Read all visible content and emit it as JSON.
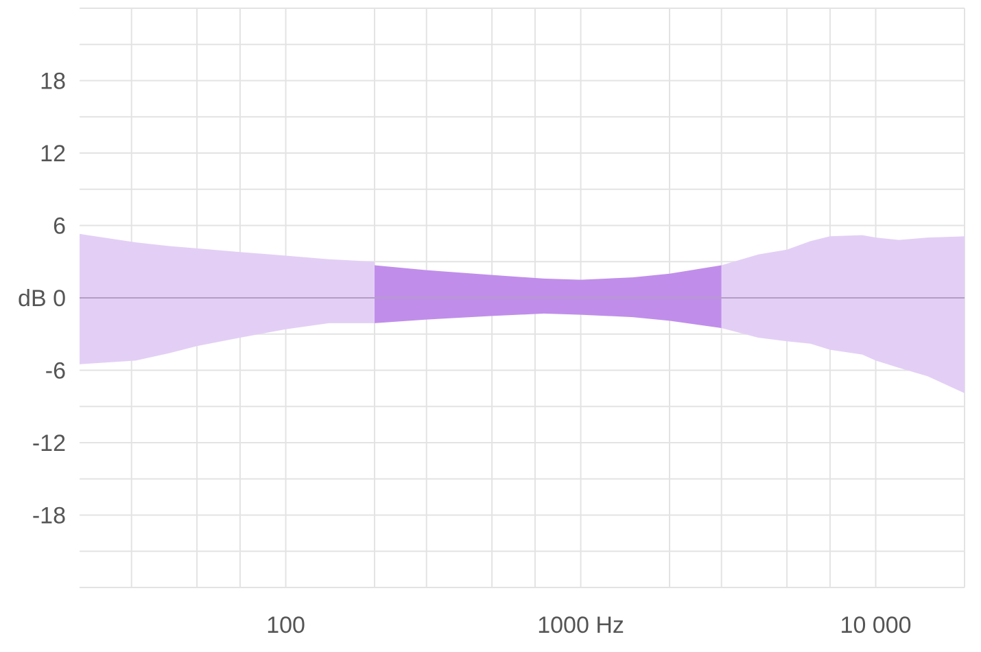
{
  "chart_data": {
    "type": "area",
    "title": "",
    "xlabel": "",
    "ylabel": "dB",
    "x_scale": "log",
    "xlim": [
      20,
      20000
    ],
    "ylim": [
      -24,
      24
    ],
    "grid": true,
    "legend": "none",
    "x_ticks": [
      {
        "value": 100,
        "label": "100"
      },
      {
        "value": 1000,
        "label": "1000 Hz"
      },
      {
        "value": 10000,
        "label": "10 000"
      }
    ],
    "y_ticks": [
      {
        "value": 18,
        "label": "18"
      },
      {
        "value": 12,
        "label": "12"
      },
      {
        "value": 6,
        "label": "6"
      },
      {
        "value": 0,
        "label": "dB 0"
      },
      {
        "value": -6,
        "label": "-6"
      },
      {
        "value": -12,
        "label": "-12"
      },
      {
        "value": -18,
        "label": "-18"
      }
    ],
    "colors": {
      "outer_band": "#e3cff5",
      "inner_band": "#c08eea",
      "zero_line": "#b49cc7",
      "grid": "#e3e3e3",
      "tick_text": "#555555"
    },
    "series": [
      {
        "x": [
          20,
          31,
          40,
          50,
          70,
          100,
          140,
          200
        ],
        "upper": [
          5.3,
          4.6,
          4.3,
          4.1,
          3.8,
          3.5,
          3.2,
          3.0
        ],
        "lower": [
          -5.5,
          -5.2,
          -4.6,
          -4.0,
          -3.3,
          -2.6,
          -2.1,
          -2.1
        ]
      },
      {
        "x": [
          200,
          300,
          500,
          750,
          1000,
          1500,
          2000,
          3000
        ],
        "upper": [
          2.7,
          2.3,
          1.9,
          1.6,
          1.5,
          1.7,
          2.0,
          2.7
        ],
        "lower": [
          -2.1,
          -1.8,
          -1.5,
          -1.3,
          -1.4,
          -1.6,
          -1.9,
          -2.5
        ]
      },
      {
        "x": [
          3000,
          4000,
          5000,
          6000,
          7000,
          9000,
          10000,
          12000,
          15000,
          20000
        ],
        "upper": [
          2.7,
          3.6,
          4.0,
          4.7,
          5.1,
          5.2,
          5.0,
          4.8,
          5.0,
          5.1
        ],
        "lower": [
          -2.5,
          -3.3,
          -3.6,
          -3.8,
          -4.3,
          -4.7,
          -5.2,
          -5.8,
          -6.5,
          -7.9
        ]
      }
    ]
  }
}
